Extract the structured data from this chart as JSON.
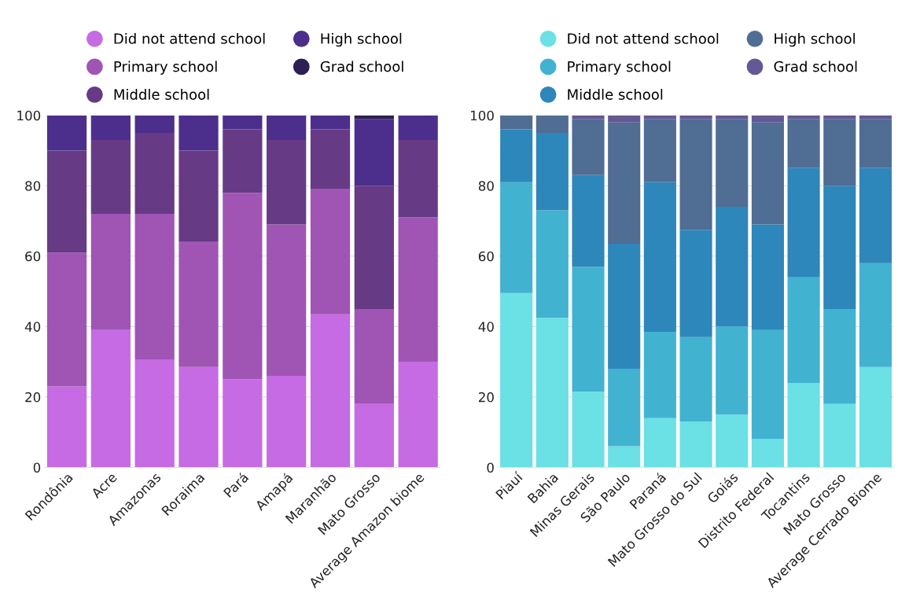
{
  "chart_data": [
    {
      "type": "bar",
      "stacked": true,
      "categories": [
        "Rondônia",
        "Acre",
        "Amazonas",
        "Roraima",
        "Pará",
        "Amapá",
        "Maranhão",
        "Mato Grosso",
        "Average Amazon biome"
      ],
      "ylim": [
        0,
        100
      ],
      "yticks": [
        0,
        20,
        40,
        60,
        80,
        100
      ],
      "grid": "y",
      "legend": "top",
      "series": [
        {
          "name": "Did not attend school",
          "color": "#c66be3",
          "values": [
            23,
            39,
            30.5,
            28.5,
            25,
            26,
            43.5,
            18,
            30
          ]
        },
        {
          "name": "Primary school",
          "color": "#a055b5",
          "values": [
            38,
            33,
            41.5,
            35.5,
            53,
            43,
            35.5,
            27,
            41
          ]
        },
        {
          "name": "Middle school",
          "color": "#673a86",
          "values": [
            29,
            21,
            23,
            26,
            18,
            24,
            17,
            35,
            22
          ]
        },
        {
          "name": "High school",
          "color": "#4c2f8c",
          "values": [
            10,
            7,
            5,
            10,
            4,
            7,
            4,
            19,
            7
          ]
        },
        {
          "name": "Grad school",
          "color": "#2e1f55",
          "values": [
            0,
            0,
            0,
            0,
            0,
            0,
            0,
            1,
            0
          ]
        }
      ]
    },
    {
      "type": "bar",
      "stacked": true,
      "categories": [
        "Piauí",
        "Bahia",
        "Minas Gerais",
        "São Paulo",
        "Paraná",
        "Mato Grosso do Sul",
        "Goiás",
        "Distrito Federal",
        "Tocantins",
        "Mato Grosso",
        "Average Cerrado Biome"
      ],
      "ylim": [
        0,
        100
      ],
      "yticks": [
        0,
        20,
        40,
        60,
        80,
        100
      ],
      "grid": "y",
      "legend": "top",
      "series": [
        {
          "name": "Did not attend school",
          "color": "#6be0e5",
          "values": [
            49.5,
            42.5,
            21.5,
            6,
            14,
            13,
            15,
            8,
            24,
            18,
            28.5
          ]
        },
        {
          "name": "Primary school",
          "color": "#42b2d1",
          "values": [
            31.5,
            30.5,
            35.5,
            22,
            24.5,
            24,
            25,
            31,
            30,
            27,
            29.5
          ]
        },
        {
          "name": "Middle school",
          "color": "#2d87ba",
          "values": [
            15,
            22,
            26,
            35.5,
            42.5,
            30.5,
            34,
            30,
            31,
            35,
            27
          ]
        },
        {
          "name": "High school",
          "color": "#506d94",
          "values": [
            4,
            5,
            16,
            34.5,
            18,
            31.5,
            25,
            29,
            14,
            19,
            14
          ]
        },
        {
          "name": "Grad school",
          "color": "#645895",
          "values": [
            0,
            0,
            1,
            2,
            1,
            1,
            1,
            2,
            1,
            1,
            1
          ]
        }
      ]
    }
  ]
}
